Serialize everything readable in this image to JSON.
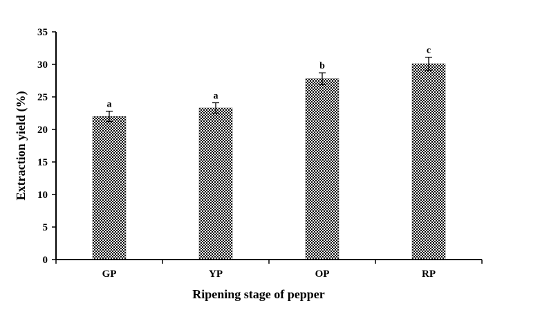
{
  "chart_data": {
    "type": "bar",
    "title": "",
    "xlabel": "Ripening stage of pepper",
    "ylabel": "Extraction yield (%)",
    "categories": [
      "GP",
      "YP",
      "OP",
      "RP"
    ],
    "values": [
      22.0,
      23.3,
      27.8,
      30.1
    ],
    "errors": [
      0.8,
      0.8,
      0.9,
      1.0
    ],
    "significance_labels": [
      "a",
      "a",
      "b",
      "c"
    ],
    "ylim": [
      0,
      35
    ],
    "yticks": [
      0,
      5,
      10,
      15,
      20,
      25,
      30,
      35
    ],
    "ytick_labels": [
      "0",
      "5",
      "10",
      "15",
      "20",
      "25",
      "30",
      "35"
    ],
    "grid": false,
    "legend": "none",
    "bar_fill": "checkered black and white pattern",
    "colors": {
      "bar_dark": "#000000",
      "bar_light": "#ffffff",
      "axis": "#000000"
    }
  }
}
